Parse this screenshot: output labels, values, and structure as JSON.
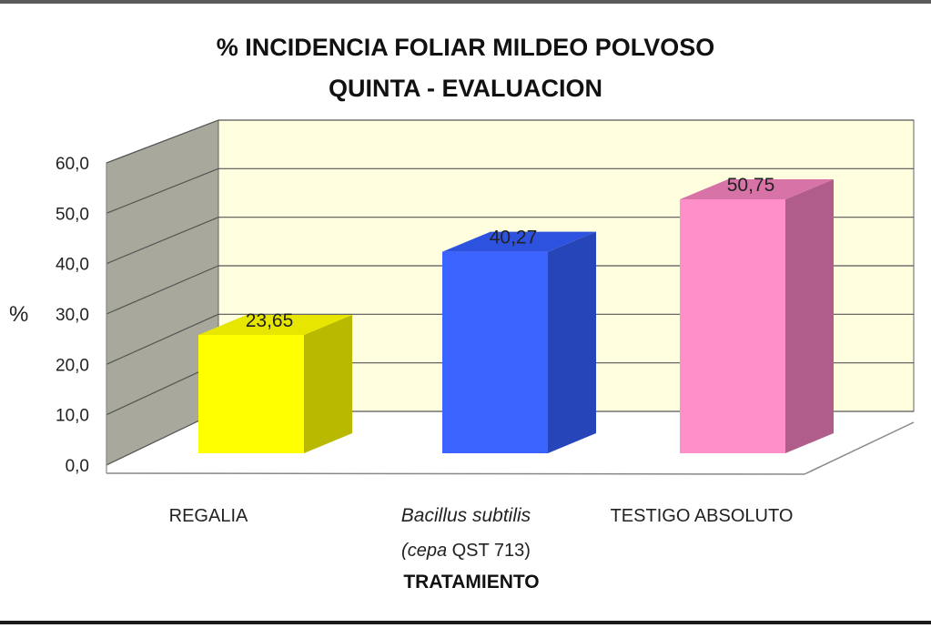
{
  "chart_data": {
    "type": "bar",
    "title": "% INCIDENCIA  FOLIAR MILDEO POLVOSO",
    "subtitle": "QUINTA - EVALUACION",
    "ylabel": "%",
    "xlabel": "TRATAMIENTO",
    "ylim": [
      0,
      60
    ],
    "y_ticks": [
      "0,0",
      "10,0",
      "20,0",
      "30,0",
      "40,0",
      "50,0",
      "60,0"
    ],
    "grid": true,
    "categories": [
      {
        "label": "REGALIA",
        "label_italic": "",
        "label_line2_italic": "",
        "label_line2_rest": ""
      },
      {
        "label": "",
        "label_italic": "Bacillus subtilis",
        "label_line2_italic": "(cepa",
        "label_line2_rest": " QST 713)"
      },
      {
        "label": "TESTIGO ABSOLUTO",
        "label_italic": "",
        "label_line2_italic": "",
        "label_line2_rest": ""
      }
    ],
    "values": [
      23.65,
      40.27,
      50.75
    ],
    "value_labels": [
      "23,65",
      "40,27",
      "50,75"
    ],
    "colors": {
      "front": [
        "#ffff00",
        "#3a63ff",
        "#ff8fc8"
      ],
      "side": [
        "#b9b900",
        "#2645b8",
        "#b05d8c"
      ],
      "top": [
        "#e6e600",
        "#2d52e0",
        "#d873a8"
      ],
      "wall_back": "#ffffe0",
      "wall_left": "#a8a89c",
      "gridline": "#555555"
    }
  }
}
